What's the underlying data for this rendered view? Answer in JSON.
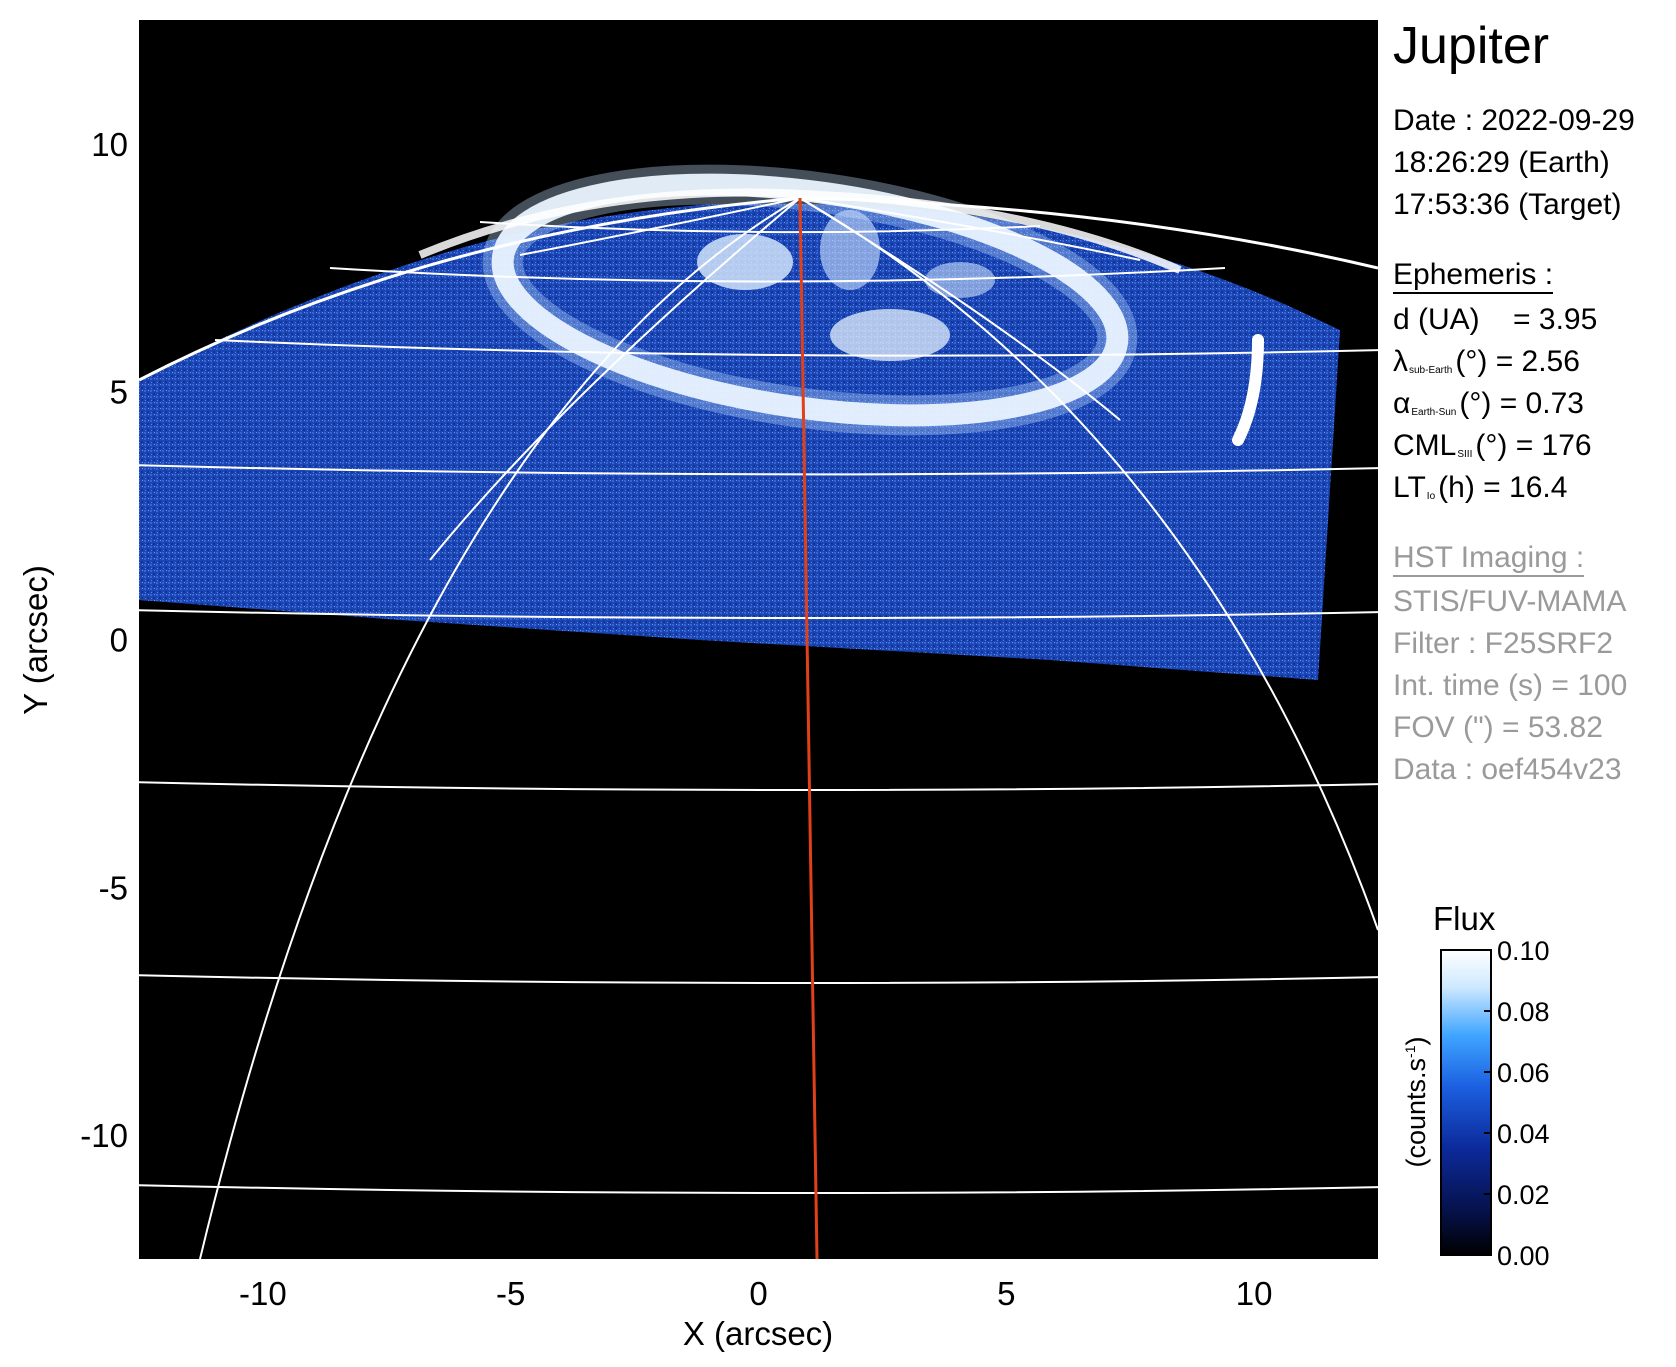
{
  "title": "Jupiter",
  "date": {
    "line1": "Date : 2022-09-29",
    "line2": "18:26:29 (Earth)",
    "line3": "17:53:36 (Target)"
  },
  "ephemeris": {
    "heading": "Ephemeris :",
    "d": {
      "label": "d (UA)",
      "value": "= 3.95"
    },
    "lambda": {
      "symbol": "λ",
      "sub": "sub-Earth",
      "unit": "(°)",
      "value": "= 2.56"
    },
    "alpha": {
      "symbol": "α",
      "sub": "Earth-Sun",
      "unit": "(°)",
      "value": "= 0.73"
    },
    "cml": {
      "symbol": "CML",
      "sub": "SIII",
      "unit": "(°)",
      "value": "= 176"
    },
    "lt": {
      "symbol": "LT",
      "sub": "Io",
      "unit": "(h)",
      "value": "= 16.4"
    }
  },
  "hst": {
    "heading": "HST Imaging :",
    "instrument": "STIS/FUV-MAMA",
    "filter": "Filter : F25SRF2",
    "int_time": "Int. time (s) = 100",
    "fov": "FOV (\") = 53.82",
    "data": "Data : oef454v23"
  },
  "colorbar": {
    "title": "Flux",
    "label": "(counts.s",
    "label_sup": "-1",
    "label_end": ")",
    "ticks": [
      "0.10",
      "0.08",
      "0.06",
      "0.04",
      "0.02",
      "0.00"
    ],
    "colors": [
      "#ffffff",
      "#cfe9ff",
      "#3fa5ff",
      "#1b5fe0",
      "#0c2a9a",
      "#06124d",
      "#000000"
    ]
  },
  "chart_data": {
    "type": "heatmap",
    "title": "",
    "xlabel": "X (arcsec)",
    "ylabel": "Y (arcsec)",
    "xlim": [
      -12.5,
      12.5
    ],
    "ylim": [
      -12.5,
      12.5
    ],
    "xticks": [
      "-10",
      "-5",
      "0",
      "5",
      "10"
    ],
    "yticks": [
      "10",
      "5",
      "0",
      "-5",
      "-10"
    ],
    "xtick_values": [
      -10,
      -5,
      0,
      5,
      10
    ],
    "ytick_values": [
      10,
      5,
      0,
      -5,
      -10
    ],
    "colorscale_range": [
      0,
      0.1
    ],
    "central_meridian_color": "#e0401a",
    "grid_color": "#ffffff",
    "background": "#000000"
  }
}
